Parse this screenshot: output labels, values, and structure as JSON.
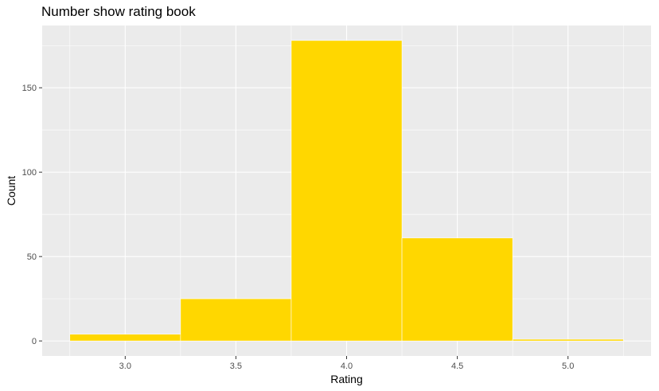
{
  "chart_data": {
    "type": "bar",
    "title": "Number show rating book",
    "xlabel": "Rating",
    "ylabel": "Count",
    "bins": [
      {
        "x_start": 2.75,
        "x_end": 3.25,
        "value": 4
      },
      {
        "x_start": 3.25,
        "x_end": 3.75,
        "value": 25
      },
      {
        "x_start": 3.75,
        "x_end": 4.25,
        "value": 178
      },
      {
        "x_start": 4.25,
        "x_end": 4.75,
        "value": 61
      },
      {
        "x_start": 4.75,
        "x_end": 5.25,
        "value": 1
      }
    ],
    "x_ticks": [
      3.0,
      3.5,
      4.0,
      4.5,
      5.0
    ],
    "x_tick_labels": [
      "3.0",
      "3.5",
      "4.0",
      "4.5",
      "5.0"
    ],
    "y_ticks": [
      0,
      50,
      100,
      150
    ],
    "y_tick_labels": [
      "0",
      "50",
      "100",
      "150"
    ],
    "xlim": [
      2.625,
      5.375
    ],
    "ylim": [
      -8.9,
      186.9
    ],
    "grid": true,
    "legend": "none",
    "colors": {
      "bar_fill": "#FFD700",
      "bar_outline": "#FFFFFF",
      "panel_background": "#EBEBEB",
      "grid_major": "#FFFFFF",
      "tick_text": "#4D4D4D"
    }
  }
}
